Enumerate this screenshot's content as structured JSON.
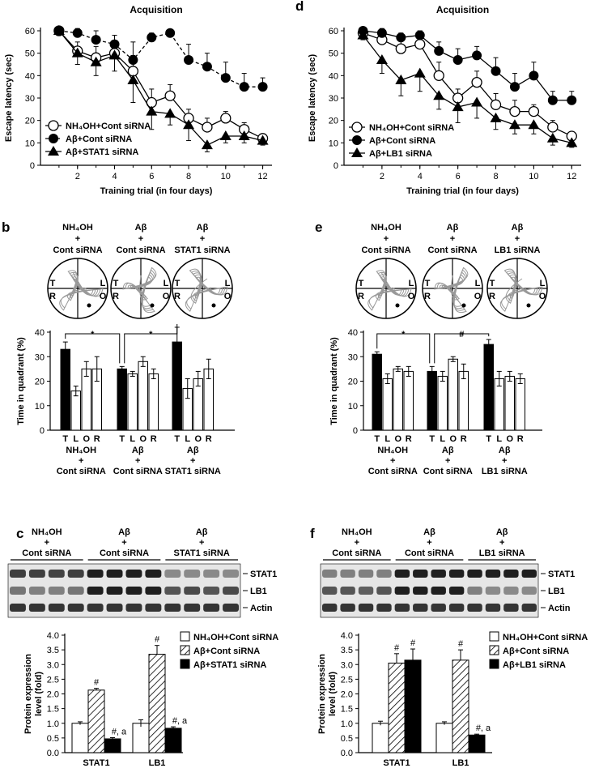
{
  "figure": {
    "a": {
      "label": "a",
      "chart_data": {
        "type": "line",
        "title": "Acquisition",
        "xlabel": "Training trial (in four days)",
        "ylabel": "Escape latency (sec)",
        "xlim": [
          0,
          12.5
        ],
        "ylim": [
          0,
          60
        ],
        "xticks": [
          2,
          4,
          6,
          8,
          10,
          12
        ],
        "yticks": [
          0,
          10,
          20,
          30,
          40,
          50,
          60
        ],
        "series": [
          {
            "name": "NH₄OH+Cont siRNA",
            "marker": "open-circle",
            "style": "solid",
            "x": [
              1,
              2,
              3,
              4,
              5,
              6,
              7,
              8,
              9,
              10,
              11,
              12
            ],
            "values": [
              60,
              51,
              48,
              50,
              42,
              28,
              31,
              21,
              17,
              21,
              16,
              12
            ],
            "errors": [
              1,
              4,
              5,
              5,
              7,
              6,
              5,
              4,
              4,
              3,
              3,
              2
            ]
          },
          {
            "name": "Aβ+Cont siRNA",
            "marker": "filled-circle",
            "style": "dashed",
            "x": [
              1,
              2,
              3,
              4,
              5,
              6,
              7,
              8,
              9,
              10,
              11,
              12
            ],
            "values": [
              60,
              59,
              56,
              54,
              47,
              57,
              59,
              47,
              44,
              39,
              35,
              35
            ],
            "errors": [
              1,
              2,
              4,
              4,
              8,
              2,
              1,
              7,
              6,
              7,
              6,
              4
            ]
          },
          {
            "name": "Aβ+STAT1 siRNA",
            "marker": "filled-triangle",
            "style": "solid",
            "x": [
              1,
              2,
              3,
              4,
              5,
              6,
              7,
              8,
              9,
              10,
              11,
              12
            ],
            "values": [
              60,
              50,
              46,
              49,
              38,
              24,
              23,
              18,
              9,
              13,
              13,
              11
            ],
            "errors": [
              1,
              5,
              6,
              7,
              10,
              8,
              5,
              7,
              3,
              3,
              3,
              2
            ]
          }
        ]
      }
    },
    "d": {
      "label": "d",
      "chart_data": {
        "type": "line",
        "title": "Acquisition",
        "xlabel": "Training trial (in four days)",
        "ylabel": "Escape latency (sec)",
        "xlim": [
          0,
          12.5
        ],
        "ylim": [
          0,
          60
        ],
        "xticks": [
          2,
          4,
          6,
          8,
          10,
          12
        ],
        "yticks": [
          0,
          10,
          20,
          30,
          40,
          50,
          60
        ],
        "series": [
          {
            "name": "NH₄OH+Cont siRNA",
            "marker": "open-circle",
            "style": "solid",
            "x": [
              1,
              2,
              3,
              4,
              5,
              6,
              7,
              8,
              9,
              10,
              11,
              12
            ],
            "values": [
              59,
              56,
              52,
              54,
              40,
              30,
              37,
              27,
              24,
              24,
              17,
              13
            ],
            "errors": [
              1,
              3,
              4,
              5,
              6,
              4,
              5,
              5,
              5,
              3,
              3,
              2
            ]
          },
          {
            "name": "Aβ+Cont siRNA",
            "marker": "filled-circle",
            "style": "solid",
            "x": [
              1,
              2,
              3,
              4,
              5,
              6,
              7,
              8,
              9,
              10,
              11,
              12
            ],
            "values": [
              60,
              59,
              57,
              58,
              51,
              47,
              49,
              42,
              35,
              40,
              29,
              29
            ],
            "errors": [
              1,
              2,
              2,
              2,
              4,
              5,
              4,
              6,
              6,
              6,
              4,
              4
            ]
          },
          {
            "name": "Aβ+LB1 siRNA",
            "marker": "filled-triangle",
            "style": "solid",
            "x": [
              1,
              2,
              3,
              4,
              5,
              6,
              7,
              8,
              9,
              10,
              11,
              12
            ],
            "values": [
              58,
              47,
              38,
              41,
              31,
              26,
              28,
              21,
              18,
              18,
              12,
              10
            ],
            "errors": [
              2,
              6,
              7,
              8,
              6,
              7,
              7,
              5,
              4,
              4,
              3,
              2
            ]
          }
        ]
      }
    },
    "b": {
      "label": "b",
      "groups_top": [
        {
          "l1": "NH₄OH",
          "l2": "+",
          "l3": "Cont siRNA"
        },
        {
          "l1": "Aβ",
          "l2": "+",
          "l3": "Cont siRNA"
        },
        {
          "l1": "Aβ",
          "l2": "+",
          "l3": "STAT1 siRNA"
        }
      ],
      "quadrant_letters": [
        "T",
        "L",
        "R",
        "O"
      ],
      "chart_data": {
        "type": "bar",
        "ylabel": "Time in quadrant (%)",
        "ylim": [
          0,
          40
        ],
        "yticks": [
          0,
          10,
          20,
          30,
          40
        ],
        "quadrants": [
          "T",
          "L",
          "O",
          "R"
        ],
        "groups": [
          {
            "l1": "NH₄OH",
            "l2": "+",
            "l3": "Cont siRNA",
            "values": [
              33,
              16,
              25,
              25
            ],
            "errors": [
              3,
              2,
              3,
              5
            ]
          },
          {
            "l1": "Aβ",
            "l2": "+",
            "l3": "Cont siRNA",
            "values": [
              25,
              23,
              28,
              23
            ],
            "errors": [
              1,
              1,
              2,
              2
            ]
          },
          {
            "l1": "Aβ",
            "l2": "+",
            "l3": "STAT1 siRNA",
            "values": [
              36,
              17,
              21,
              25
            ],
            "errors": [
              6,
              4,
              3,
              4
            ]
          }
        ],
        "sig": [
          "*",
          "*"
        ]
      }
    },
    "e": {
      "label": "e",
      "groups_top": [
        {
          "l1": "NH₄OH",
          "l2": "+",
          "l3": "Cont siRNA"
        },
        {
          "l1": "Aβ",
          "l2": "+",
          "l3": "Cont siRNA"
        },
        {
          "l1": "Aβ",
          "l2": "+",
          "l3": "LB1 siRNA"
        }
      ],
      "quadrant_letters": [
        "T",
        "L",
        "R",
        "O"
      ],
      "chart_data": {
        "type": "bar",
        "ylabel": "Time in quadrant (%)",
        "ylim": [
          0,
          40
        ],
        "yticks": [
          0,
          10,
          20,
          30,
          40
        ],
        "quadrants": [
          "T",
          "L",
          "O",
          "R"
        ],
        "groups": [
          {
            "l1": "NH₄OH",
            "l2": "+",
            "l3": "Cont siRNA",
            "values": [
              31,
              21,
              25,
              24
            ],
            "errors": [
              1,
              2,
              1,
              2
            ]
          },
          {
            "l1": "Aβ",
            "l2": "+",
            "l3": "Cont siRNA",
            "values": [
              24,
              22,
              29,
              24
            ],
            "errors": [
              2,
              2,
              1,
              3
            ]
          },
          {
            "l1": "Aβ",
            "l2": "+",
            "l3": "LB1 siRNA",
            "values": [
              35,
              21,
              22,
              21
            ],
            "errors": [
              2,
              3,
              2,
              2
            ]
          }
        ],
        "sig": [
          "*",
          "#"
        ]
      }
    },
    "c": {
      "label": "c",
      "blot_groups": [
        {
          "l1": "NH₄OH",
          "l2": "+",
          "l3": "Cont siRNA"
        },
        {
          "l1": "Aβ",
          "l2": "+",
          "l3": "Cont siRNA"
        },
        {
          "l1": "Aβ",
          "l2": "+",
          "l3": "STAT1 siRNA"
        }
      ],
      "blot_rows": [
        "STAT1",
        "LB1",
        "Actin"
      ],
      "blot_intensity": [
        [
          0.8,
          0.8,
          0.78,
          0.8,
          0.95,
          0.95,
          0.95,
          0.95,
          0.45,
          0.45,
          0.45,
          0.45
        ],
        [
          0.55,
          0.5,
          0.5,
          0.55,
          0.95,
          0.95,
          0.95,
          0.95,
          0.7,
          0.75,
          0.7,
          0.75
        ],
        [
          0.85,
          0.85,
          0.85,
          0.85,
          0.85,
          0.85,
          0.85,
          0.85,
          0.85,
          0.85,
          0.85,
          0.85
        ]
      ],
      "chart_data": {
        "type": "bar",
        "ylabel": "Protein expression level (fold)",
        "ylim": [
          0,
          4.0
        ],
        "yticks": [
          0,
          0.5,
          1.0,
          1.5,
          2.0,
          2.5,
          3.0,
          3.5,
          4.0
        ],
        "categories": [
          "STAT1",
          "LB1"
        ],
        "series": [
          {
            "name": "NH₄OH+Cont siRNA",
            "pattern": "open",
            "values": [
              1.0,
              1.0
            ],
            "errors": [
              0.05,
              0.12
            ]
          },
          {
            "name": "Aβ+Cont siRNA",
            "pattern": "hatched",
            "values": [
              2.13,
              3.35
            ],
            "errors": [
              0.06,
              0.3
            ]
          },
          {
            "name": "Aβ+STAT1 siRNA",
            "pattern": "filled",
            "values": [
              0.47,
              0.83
            ],
            "errors": [
              0.04,
              0.05
            ]
          }
        ],
        "annotations": [
          {
            "category": 0,
            "series": 1,
            "text": "#"
          },
          {
            "category": 0,
            "series": 2,
            "text": "#, a"
          },
          {
            "category": 1,
            "series": 1,
            "text": "#"
          },
          {
            "category": 1,
            "series": 2,
            "text": "#, a"
          }
        ]
      }
    },
    "f": {
      "label": "f",
      "blot_groups": [
        {
          "l1": "NH₄OH",
          "l2": "+",
          "l3": "Cont siRNA"
        },
        {
          "l1": "Aβ",
          "l2": "+",
          "l3": "Cont siRNA"
        },
        {
          "l1": "Aβ",
          "l2": "+",
          "l3": "LB1 siRNA"
        }
      ],
      "blot_rows": [
        "STAT1",
        "LB1",
        "Actin"
      ],
      "blot_intensity": [
        [
          0.5,
          0.5,
          0.5,
          0.5,
          0.95,
          0.95,
          0.95,
          0.95,
          0.95,
          0.95,
          0.95,
          0.95
        ],
        [
          0.7,
          0.7,
          0.65,
          0.7,
          0.95,
          0.95,
          0.95,
          0.95,
          0.5,
          0.45,
          0.45,
          0.45
        ],
        [
          0.85,
          0.85,
          0.85,
          0.85,
          0.85,
          0.85,
          0.85,
          0.85,
          0.85,
          0.85,
          0.85,
          0.85
        ]
      ],
      "chart_data": {
        "type": "bar",
        "ylabel": "Protein expression level (fold)",
        "ylim": [
          0,
          4.0
        ],
        "yticks": [
          0,
          0.5,
          1.0,
          1.5,
          2.0,
          2.5,
          3.0,
          3.5,
          4.0
        ],
        "categories": [
          "STAT1",
          "LB1"
        ],
        "series": [
          {
            "name": "NH₄OH+Cont siRNA",
            "pattern": "open",
            "values": [
              1.0,
              1.0
            ],
            "errors": [
              0.07,
              0.05
            ]
          },
          {
            "name": "Aβ+Cont siRNA",
            "pattern": "hatched",
            "values": [
              3.05,
              3.15
            ],
            "errors": [
              0.32,
              0.35
            ]
          },
          {
            "name": "Aβ+LB1 siRNA",
            "pattern": "filled",
            "values": [
              3.15,
              0.6
            ],
            "errors": [
              0.38,
              0.03
            ]
          }
        ],
        "annotations": [
          {
            "category": 0,
            "series": 1,
            "text": "#"
          },
          {
            "category": 0,
            "series": 2,
            "text": "#"
          },
          {
            "category": 1,
            "series": 1,
            "text": "#"
          },
          {
            "category": 1,
            "series": 2,
            "text": "#, a"
          }
        ]
      }
    }
  }
}
